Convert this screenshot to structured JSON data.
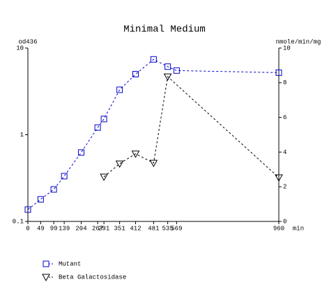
{
  "chart_data": {
    "type": "line",
    "title": "Minimal Medium",
    "y_label": "od436",
    "y2_label": "nmole/min/mg",
    "x_label": "min",
    "xlim": [
      0,
      960
    ],
    "xticks": [
      0,
      49,
      99,
      139,
      204,
      267,
      291,
      351,
      412,
      481,
      535,
      569,
      960
    ],
    "ylim": [
      0.1,
      10
    ],
    "yticks": [
      0.1,
      1,
      10
    ],
    "ylog": true,
    "y2lim": [
      0,
      10
    ],
    "y2ticks": [
      0,
      2,
      4,
      6,
      8,
      10
    ],
    "series": [
      {
        "name": "Mutant",
        "color": "#0000cc",
        "marker": "square",
        "x": [
          0,
          49,
          99,
          139,
          204,
          267,
          291,
          351,
          412,
          481,
          535,
          569,
          960
        ],
        "values": [
          0.137,
          0.18,
          0.234,
          0.333,
          0.624,
          1.21,
          1.52,
          3.3,
          5.0,
          7.4,
          6.1,
          5.5,
          5.2
        ]
      },
      {
        "name": "Beta Galactosidase",
        "color": "#000000",
        "marker": "triangle",
        "axis": "y2",
        "x": [
          291,
          351,
          412,
          481,
          535,
          960
        ],
        "values": [
          2.57,
          3.33,
          3.9,
          3.37,
          8.35,
          2.53
        ]
      }
    ]
  }
}
